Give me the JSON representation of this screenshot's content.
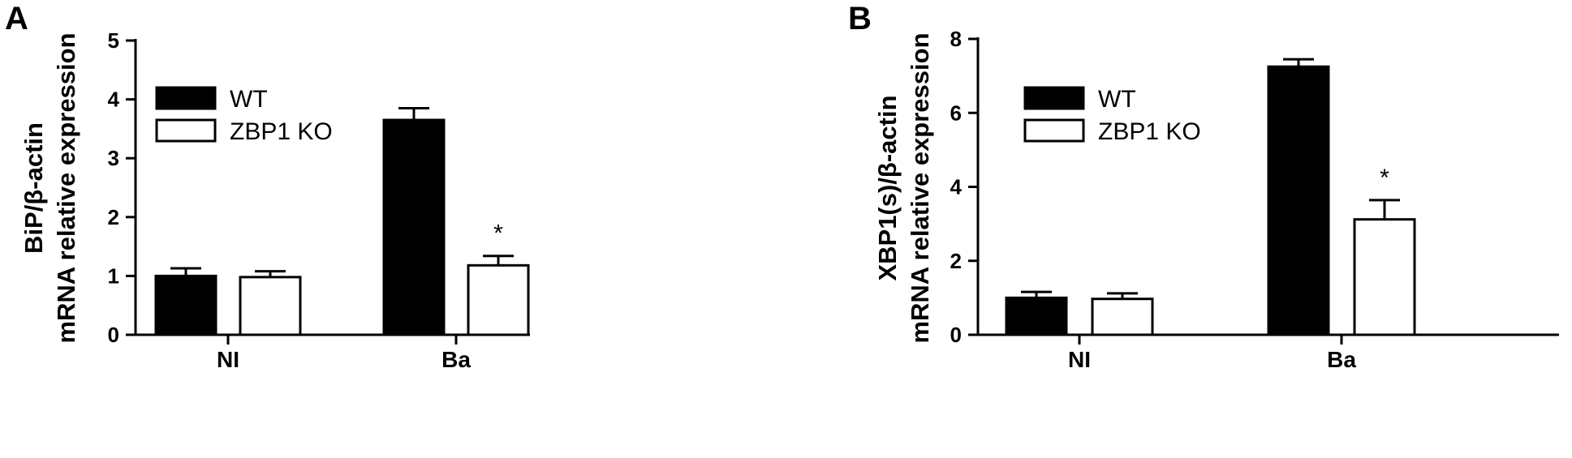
{
  "chart_data": [
    {
      "panel": "A",
      "type": "bar",
      "ylabel_lines": [
        "BiP/β-actin",
        "mRNA relative expression"
      ],
      "ylim": [
        0,
        5
      ],
      "yticks": [
        0,
        1,
        2,
        3,
        4,
        5
      ],
      "categories": [
        "NI",
        "Ba"
      ],
      "series": [
        {
          "name": "WT",
          "fill": "#000000",
          "values": [
            1.0,
            3.65
          ],
          "errors": [
            0.13,
            0.2
          ]
        },
        {
          "name": "ZBP1 KO",
          "fill": "#ffffff",
          "values": [
            0.98,
            1.18
          ],
          "errors": [
            0.1,
            0.16
          ]
        }
      ],
      "annotations": [
        {
          "text": "*",
          "category": 1,
          "series": 1
        }
      ],
      "legend": "top-left"
    },
    {
      "panel": "B",
      "type": "bar",
      "ylabel_lines": [
        "XBP1(s)/β-actin",
        "mRNA relative expression"
      ],
      "ylim": [
        0,
        8
      ],
      "yticks": [
        0,
        2,
        4,
        6,
        8
      ],
      "categories": [
        "NI",
        "Ba"
      ],
      "series": [
        {
          "name": "WT",
          "fill": "#000000",
          "values": [
            1.0,
            7.25
          ],
          "errors": [
            0.16,
            0.2
          ]
        },
        {
          "name": "ZBP1 KO",
          "fill": "#ffffff",
          "values": [
            0.97,
            3.12
          ],
          "errors": [
            0.15,
            0.52
          ]
        }
      ],
      "annotations": [
        {
          "text": "*",
          "category": 1,
          "series": 1
        }
      ],
      "legend": "top-left"
    }
  ]
}
